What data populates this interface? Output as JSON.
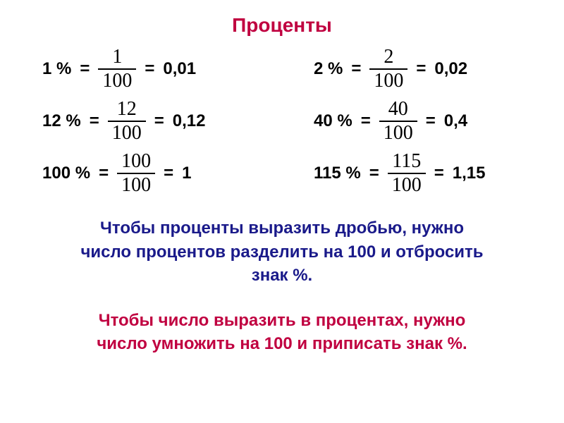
{
  "title": "Проценты",
  "title_color": "#c00040",
  "equations": {
    "row1": {
      "left": {
        "pct": "1 %",
        "num": "1",
        "den": "100",
        "dec": "0,01"
      },
      "right": {
        "pct": "2 %",
        "num": "2",
        "den": "100",
        "dec": "0,02"
      }
    },
    "row2": {
      "left": {
        "pct": "12 %",
        "num": "12",
        "den": "100",
        "dec": "0,12"
      },
      "right": {
        "pct": "40 %",
        "num": "40",
        "den": "100",
        "dec": "0,4"
      }
    },
    "row3": {
      "left": {
        "pct": "100 %",
        "num": "100",
        "den": "100",
        "dec": "1"
      },
      "right": {
        "pct": "115 %",
        "num": "115",
        "den": "100",
        "dec": "1,15"
      }
    }
  },
  "rule1": {
    "line1": "Чтобы проценты выразить дробью, нужно",
    "line2": "число процентов разделить на 100 и отбросить",
    "line3": "знак %.",
    "color": "#1a1a8a"
  },
  "rule2": {
    "line1": "Чтобы число выразить в процентах, нужно",
    "line2": "число умножить на 100 и приписать знак %.",
    "color": "#c00040"
  },
  "eq_sign": "=",
  "font_sizes": {
    "title": 28,
    "equations": 24,
    "fraction": 28,
    "rules": 24
  },
  "background_color": "#ffffff",
  "text_color": "#000000"
}
